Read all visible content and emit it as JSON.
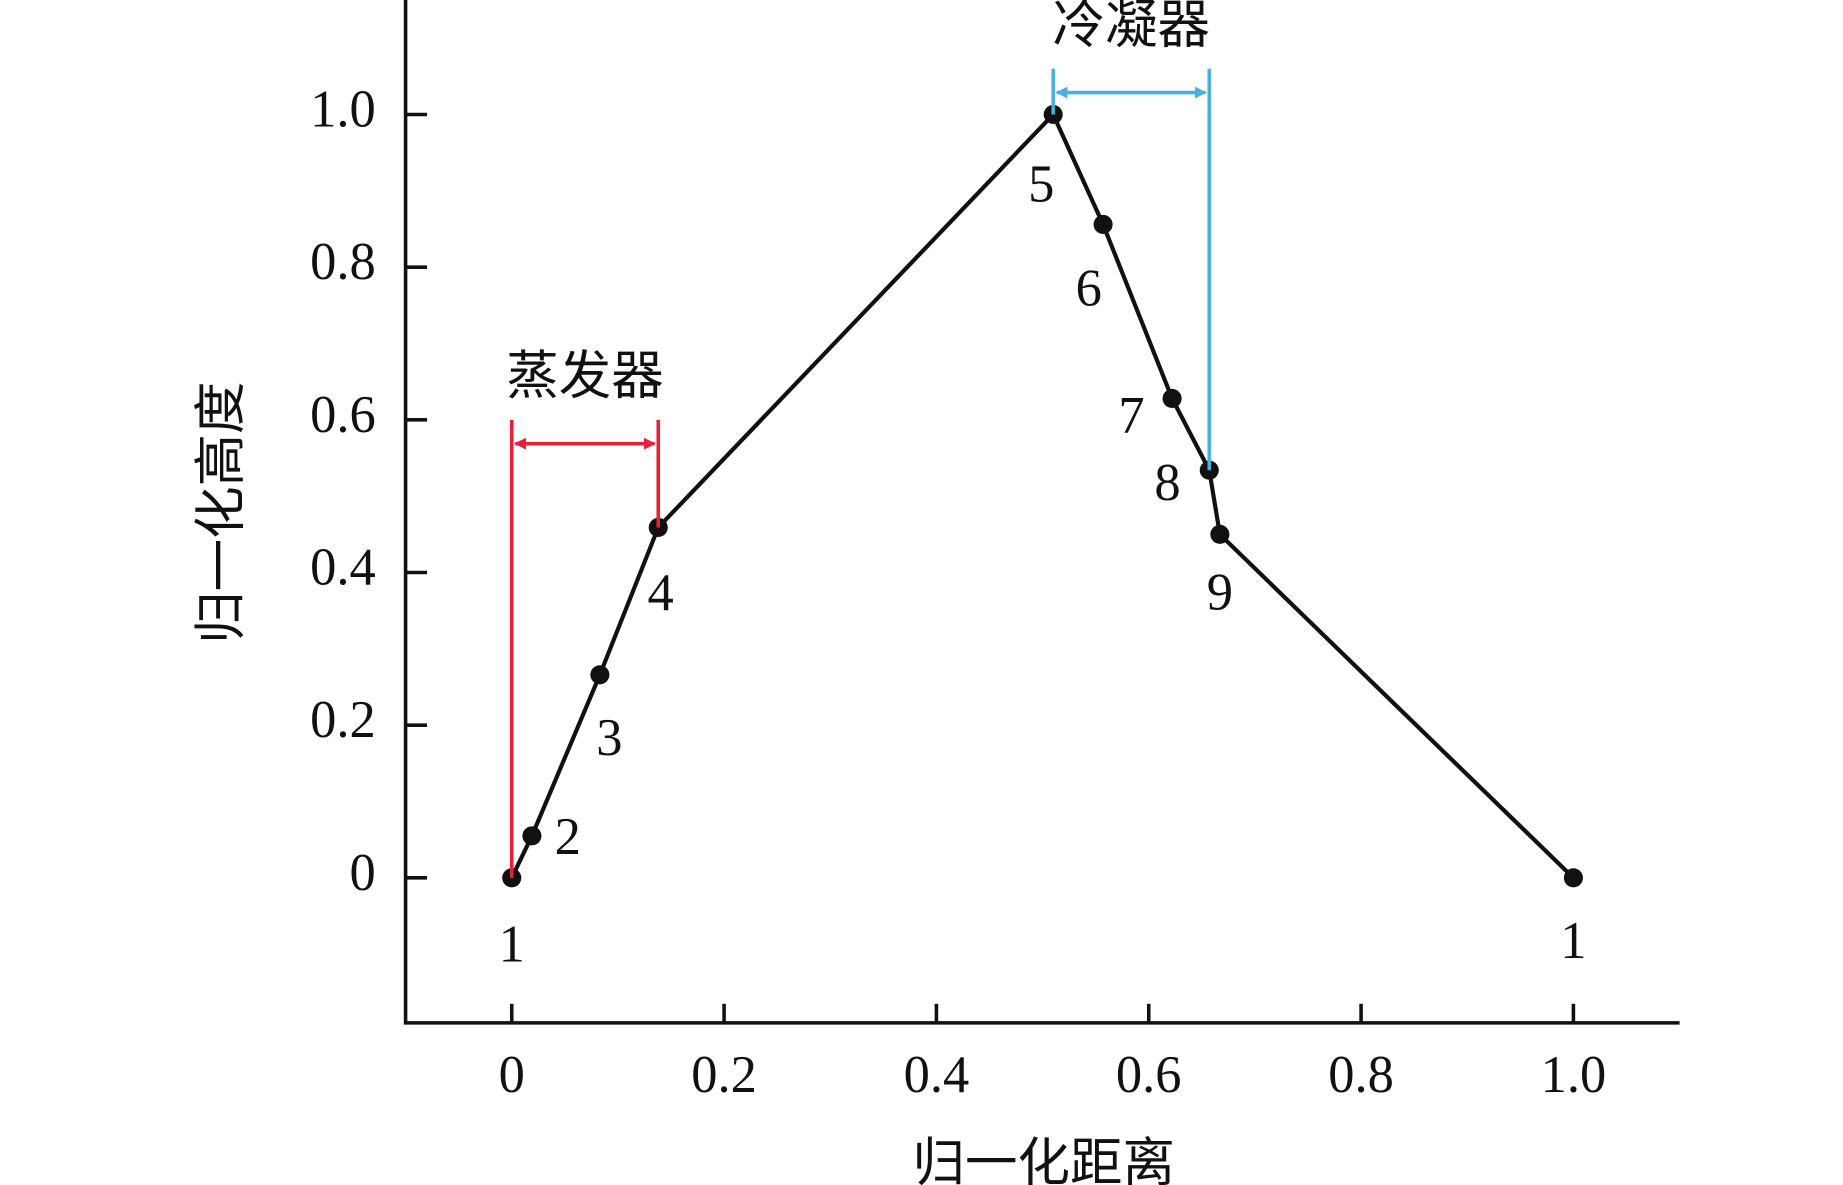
{
  "chart_data": {
    "type": "line",
    "xlabel": "归一化距离",
    "ylabel": "归一化高度",
    "xlim": [
      -0.1,
      1.1
    ],
    "ylim": [
      -0.19,
      1.15
    ],
    "xticks": [
      0,
      0.2,
      0.4,
      0.6,
      0.8,
      {
        "value": 1,
        "label": "1.0"
      }
    ],
    "yticks": [
      0,
      0.2,
      0.4,
      0.6,
      0.8,
      {
        "value": 1,
        "label": "1.0"
      }
    ],
    "series": [
      {
        "color": "#111111",
        "x": [
          0,
          0.019,
          0.083,
          0.138,
          0.51,
          0.557,
          0.622,
          0.657,
          0.667,
          1.0
        ],
        "values": [
          0,
          0.055,
          0.266,
          0.459,
          1.0,
          0.856,
          0.628,
          0.534,
          0.45,
          0
        ],
        "point_labels": [
          "1",
          "2",
          "3",
          "4",
          "5",
          "6",
          "7",
          "8",
          "9",
          "1"
        ]
      }
    ],
    "annotations": [
      {
        "text": "蒸发器",
        "color": "#e8203a",
        "from_point": 0,
        "to_point": 3,
        "y": 0.6
      },
      {
        "text": "冷凝器",
        "color": "#4ab0e0",
        "from_point": 4,
        "to_point": 7,
        "y": 1.06
      }
    ]
  }
}
